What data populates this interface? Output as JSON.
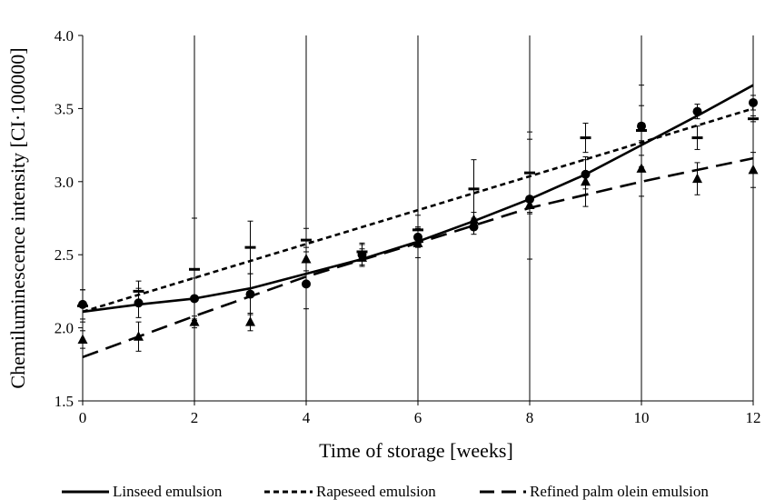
{
  "chart_data": {
    "type": "scatter",
    "xlabel": "Time of storage [weeks]",
    "ylabel": "Chemiluminescence intensity [CI·100000]",
    "xlim": [
      0,
      12
    ],
    "ylim": [
      1.5,
      4.0
    ],
    "x_ticks": [
      "0",
      "2",
      "4",
      "6",
      "8",
      "10",
      "12"
    ],
    "y_ticks": [
      "1.5",
      "2.0",
      "2.5",
      "3.0",
      "3.5",
      "4.0"
    ],
    "grid": "vertical",
    "legend_position": "bottom",
    "series": [
      {
        "name": "Linseed emulsion",
        "line_style": "solid",
        "marker": "circle",
        "marker_color": "#000000",
        "x": [
          0,
          1,
          2,
          3,
          4,
          5,
          6,
          7,
          8,
          9,
          10,
          11,
          12
        ],
        "y": [
          2.16,
          2.17,
          2.2,
          2.23,
          2.3,
          2.5,
          2.62,
          2.69,
          2.88,
          3.05,
          3.38,
          3.48,
          3.54
        ],
        "error": [
          0.1,
          0.1,
          0.14,
          0.14,
          0.17,
          0.07,
          0.07,
          0.05,
          0.41,
          0.1,
          0.28,
          0.05,
          0.05
        ],
        "trend": [
          [
            0,
            2.11
          ],
          [
            1,
            2.16
          ],
          [
            2,
            2.2
          ],
          [
            3,
            2.27
          ],
          [
            4,
            2.37
          ],
          [
            5,
            2.47
          ],
          [
            6,
            2.59
          ],
          [
            7,
            2.73
          ],
          [
            8,
            2.88
          ],
          [
            9,
            3.05
          ],
          [
            10,
            3.25
          ],
          [
            11,
            3.45
          ],
          [
            12,
            3.66
          ]
        ]
      },
      {
        "name": "Rapeseed emulsion",
        "line_style": "short-dash",
        "marker": "dash",
        "marker_color": "#000000",
        "x": [
          0,
          1,
          2,
          3,
          4,
          5,
          6,
          7,
          8,
          9,
          10,
          11,
          12
        ],
        "y": [
          2.15,
          2.25,
          2.4,
          2.55,
          2.6,
          2.52,
          2.67,
          2.95,
          3.06,
          3.3,
          3.35,
          3.3,
          3.43
        ],
        "error": [
          0.11,
          0.07,
          0.35,
          0.18,
          0.08,
          0.06,
          0.1,
          0.2,
          0.28,
          0.1,
          0.17,
          0.08,
          0.02
        ],
        "trend": [
          [
            0,
            2.11
          ],
          [
            12,
            3.5
          ]
        ]
      },
      {
        "name": "Refined palm olein emulsion",
        "line_style": "long-dash",
        "marker": "triangle",
        "marker_color": "#000000",
        "x": [
          0,
          1,
          2,
          3,
          4,
          5,
          6,
          7,
          8,
          9,
          10,
          11,
          12
        ],
        "y": [
          1.92,
          1.94,
          2.04,
          2.04,
          2.47,
          2.48,
          2.58,
          2.74,
          2.84,
          3.0,
          3.09,
          3.02,
          3.08
        ],
        "error": [
          0.06,
          0.1,
          0.04,
          0.06,
          0.08,
          0.06,
          0.1,
          0.05,
          0.05,
          0.17,
          0.19,
          0.11,
          0.12
        ],
        "trend": [
          [
            0,
            1.8
          ],
          [
            2,
            2.08
          ],
          [
            4,
            2.35
          ],
          [
            6,
            2.58
          ],
          [
            8,
            2.82
          ],
          [
            10,
            3.0
          ],
          [
            12,
            3.16
          ]
        ]
      }
    ]
  }
}
